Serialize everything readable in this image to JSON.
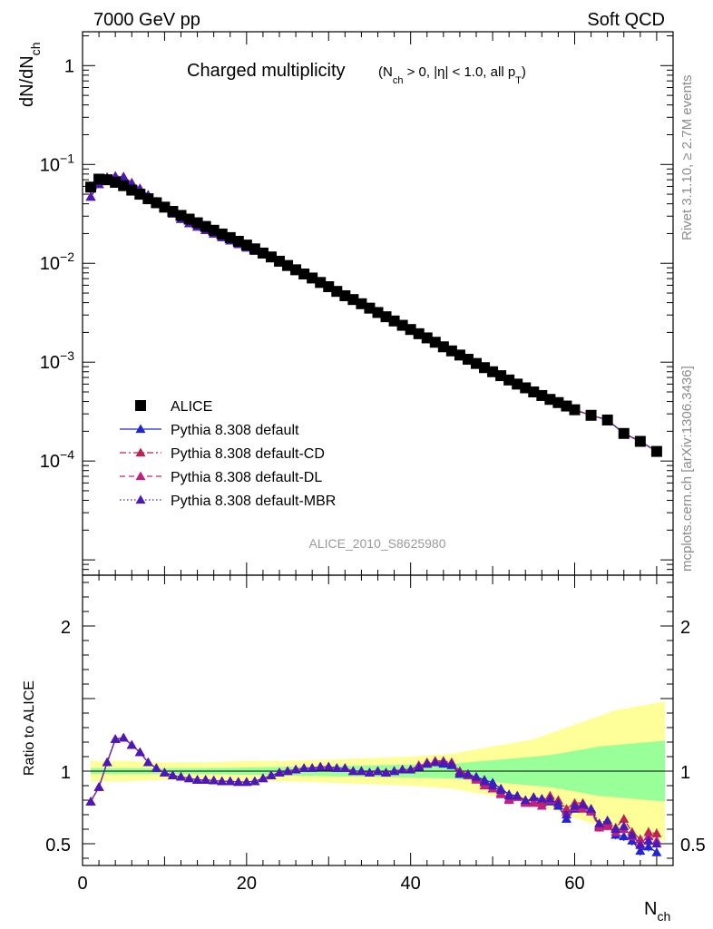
{
  "header": {
    "left_title": "7000 GeV pp",
    "right_title": "Soft QCD"
  },
  "side_labels": {
    "rivet": "Rivet 3.1.10, ≥ 2.7M events",
    "mcplots": "mcplots.cern.ch [arXiv:1306.3436]"
  },
  "chart_data": [
    {
      "type": "scatter",
      "panel": "main",
      "title": "Charged multiplicity",
      "subtitle_parts": [
        "(N",
        "ch",
        " > 0, |η| < 1.0, all p",
        "T",
        ")"
      ],
      "ylabel_parts": [
        "dN/dN",
        "ch"
      ],
      "xlabel_parts": [
        "N",
        "ch"
      ],
      "analysis_id": "ALICE_2010_S8625980",
      "yscale": "log",
      "xlim": [
        0,
        72
      ],
      "ylim": [
        7e-06,
        2.2
      ],
      "y_ticks": [
        {
          "value": 1,
          "label": "1"
        },
        {
          "value": 0.1,
          "label": "10",
          "exp": "−1"
        },
        {
          "value": 0.01,
          "label": "10",
          "exp": "−2"
        },
        {
          "value": 0.001,
          "label": "10",
          "exp": "−3"
        },
        {
          "value": 0.0001,
          "label": "10",
          "exp": "−4"
        }
      ],
      "legend_position": "lower-left",
      "x": [
        1,
        2,
        3,
        4,
        5,
        6,
        7,
        8,
        9,
        10,
        11,
        12,
        13,
        14,
        15,
        16,
        17,
        18,
        19,
        20,
        21,
        22,
        23,
        24,
        25,
        26,
        27,
        28,
        29,
        30,
        31,
        32,
        33,
        34,
        35,
        36,
        37,
        38,
        39,
        40,
        41,
        42,
        43,
        44,
        45,
        46,
        47,
        48,
        49,
        50,
        51,
        52,
        53,
        54,
        55,
        56,
        57,
        58,
        59,
        60,
        62,
        64,
        66,
        68,
        70
      ],
      "series": [
        {
          "name": "ALICE",
          "color": "#000000",
          "marker": "square",
          "values": [
            0.059,
            0.071,
            0.07,
            0.066,
            0.061,
            0.055,
            0.05,
            0.045,
            0.041,
            0.037,
            0.0335,
            0.0305,
            0.028,
            0.0257,
            0.0236,
            0.0216,
            0.0198,
            0.0182,
            0.0167,
            0.0153,
            0.014,
            0.0127,
            0.0116,
            0.0105,
            0.0095,
            0.0086,
            0.0078,
            0.0071,
            0.0064,
            0.0058,
            0.0052,
            0.0047,
            0.0043,
            0.0039,
            0.00352,
            0.00318,
            0.00288,
            0.00261,
            0.00236,
            0.00214,
            0.00194,
            0.00176,
            0.00159,
            0.00143,
            0.0013,
            0.00118,
            0.00107,
            0.00097,
            0.00088,
            0.0008,
            0.00073,
            0.00066,
            0.0006,
            0.00055,
            0.0005,
            0.00046,
            0.00042,
            0.00039,
            0.00036,
            0.00033,
            0.00029,
            0.00026,
            0.00019,
            0.000158,
            0.000125
          ]
        },
        {
          "name": "Pythia 8.308 default",
          "color": "#1f24d6",
          "marker": "triangle",
          "line": "solid",
          "values": [
            0.047,
            0.063,
            0.074,
            0.076,
            0.075,
            0.065,
            0.057,
            0.049,
            0.042,
            0.036,
            0.0317,
            0.028,
            0.0253,
            0.0234,
            0.0216,
            0.0199,
            0.0183,
            0.0169,
            0.0156,
            0.0144,
            0.0133,
            0.0123,
            0.0114,
            0.0104,
            0.0094,
            0.0086,
            0.0078,
            0.0071,
            0.0064,
            0.0058,
            0.0052,
            0.0047,
            0.0043,
            0.0039,
            0.00352,
            0.00318,
            0.00288,
            0.00261,
            0.00236,
            0.00214,
            0.00194,
            0.00176,
            0.00159,
            0.00143,
            0.0013,
            0.00118,
            0.00107,
            0.00097,
            0.00088,
            0.0008,
            0.00073,
            0.00066,
            0.0006,
            0.00055,
            0.0005,
            0.00046,
            0.00042,
            0.00039,
            0.00036,
            0.00033,
            0.00029,
            0.00026,
            0.00019,
            0.000158,
            0.000125
          ]
        },
        {
          "name": "Pythia 8.308 default-CD",
          "color": "#c0204e",
          "marker": "triangle",
          "line": "dashdot",
          "values": [
            0.047,
            0.063,
            0.074,
            0.076,
            0.075,
            0.065,
            0.057,
            0.049,
            0.042,
            0.036,
            0.0317,
            0.028,
            0.0253,
            0.0234,
            0.0216,
            0.0199,
            0.0183,
            0.0169,
            0.0156,
            0.0144,
            0.0133,
            0.0123,
            0.0114,
            0.0104,
            0.0094,
            0.0086,
            0.0078,
            0.0071,
            0.0064,
            0.0058,
            0.0052,
            0.0047,
            0.0043,
            0.0039,
            0.00352,
            0.00318,
            0.00288,
            0.00261,
            0.00236,
            0.00214,
            0.00194,
            0.00176,
            0.00159,
            0.00143,
            0.0013,
            0.00118,
            0.00107,
            0.00097,
            0.00088,
            0.0008,
            0.00073,
            0.00066,
            0.0006,
            0.00055,
            0.0005,
            0.00046,
            0.00042,
            0.00039,
            0.00036,
            0.00033,
            0.00029,
            0.00026,
            0.00019,
            0.000158,
            0.000125
          ]
        },
        {
          "name": "Pythia 8.308 default-DL",
          "color": "#c02080",
          "marker": "triangle",
          "line": "dashed",
          "values": [
            0.047,
            0.063,
            0.074,
            0.076,
            0.075,
            0.065,
            0.057,
            0.049,
            0.042,
            0.036,
            0.0317,
            0.028,
            0.0253,
            0.0234,
            0.0216,
            0.0199,
            0.0183,
            0.0169,
            0.0156,
            0.0144,
            0.0133,
            0.0123,
            0.0114,
            0.0104,
            0.0094,
            0.0086,
            0.0078,
            0.0071,
            0.0064,
            0.0058,
            0.0052,
            0.0047,
            0.0043,
            0.0039,
            0.00352,
            0.00318,
            0.00288,
            0.00261,
            0.00236,
            0.00214,
            0.00194,
            0.00176,
            0.00159,
            0.00143,
            0.0013,
            0.00118,
            0.00107,
            0.00097,
            0.00088,
            0.0008,
            0.00073,
            0.00066,
            0.0006,
            0.00055,
            0.0005,
            0.00046,
            0.00042,
            0.00039,
            0.00036,
            0.00033,
            0.00029,
            0.00026,
            0.00019,
            0.000158,
            0.000125
          ]
        },
        {
          "name": "Pythia 8.308 default-MBR",
          "color": "#4a1ab8",
          "marker": "triangle",
          "line": "dotted",
          "values": [
            0.047,
            0.063,
            0.074,
            0.076,
            0.075,
            0.065,
            0.057,
            0.049,
            0.042,
            0.036,
            0.0317,
            0.028,
            0.0253,
            0.0234,
            0.0216,
            0.0199,
            0.0183,
            0.0169,
            0.0156,
            0.0144,
            0.0133,
            0.0123,
            0.0114,
            0.0104,
            0.0094,
            0.0086,
            0.0078,
            0.0071,
            0.0064,
            0.0058,
            0.0052,
            0.0047,
            0.0043,
            0.0039,
            0.00352,
            0.00318,
            0.00288,
            0.00261,
            0.00236,
            0.00214,
            0.00194,
            0.00176,
            0.00159,
            0.00143,
            0.0013,
            0.00118,
            0.00107,
            0.00097,
            0.00088,
            0.0008,
            0.00073,
            0.00066,
            0.0006,
            0.00055,
            0.0005,
            0.00046,
            0.00042,
            0.00039,
            0.00036,
            0.00033,
            0.00029,
            0.00026,
            0.00019,
            0.000158,
            0.000125
          ]
        }
      ]
    },
    {
      "type": "line",
      "panel": "ratio",
      "ylabel": "Ratio to ALICE",
      "xlim": [
        0,
        72
      ],
      "ylim": [
        0.35,
        2.35
      ],
      "x_ticks": [
        0,
        20,
        40,
        60
      ],
      "y_ticks": [
        0.5,
        1,
        2
      ],
      "band_colors": {
        "outer": "#ffff99",
        "inner": "#99ff99"
      },
      "bands_x": [
        1,
        5,
        10,
        15,
        20,
        25,
        30,
        35,
        40,
        45,
        47,
        49,
        51,
        53,
        55,
        57,
        59,
        61,
        63,
        65,
        67,
        69,
        71
      ],
      "band_inner_halfwidth": [
        0.02,
        0.02,
        0.02,
        0.02,
        0.025,
        0.03,
        0.035,
        0.04,
        0.045,
        0.05,
        0.06,
        0.07,
        0.08,
        0.09,
        0.1,
        0.11,
        0.13,
        0.15,
        0.17,
        0.18,
        0.19,
        0.2,
        0.21
      ],
      "band_outer_halfwidth": [
        0.07,
        0.07,
        0.06,
        0.06,
        0.07,
        0.07,
        0.08,
        0.09,
        0.1,
        0.12,
        0.14,
        0.16,
        0.18,
        0.2,
        0.22,
        0.26,
        0.3,
        0.34,
        0.38,
        0.42,
        0.44,
        0.46,
        0.48
      ],
      "x": [
        1,
        2,
        3,
        4,
        5,
        6,
        7,
        8,
        9,
        10,
        11,
        12,
        13,
        14,
        15,
        16,
        17,
        18,
        19,
        20,
        21,
        22,
        23,
        24,
        25,
        26,
        27,
        28,
        29,
        30,
        31,
        32,
        33,
        34,
        35,
        36,
        37,
        38,
        39,
        40,
        41,
        42,
        43,
        44,
        45,
        46,
        47,
        48,
        49,
        50,
        51,
        52,
        53,
        54,
        55,
        56,
        57,
        58,
        59,
        60,
        61,
        62,
        63,
        64,
        65,
        66,
        67,
        68,
        69,
        70
      ],
      "series": [
        {
          "name": "Pythia 8.308 default",
          "color": "#1f24d6",
          "line": "solid",
          "values": [
            0.79,
            0.89,
            1.06,
            1.22,
            1.23,
            1.18,
            1.13,
            1.06,
            1.02,
            0.99,
            0.97,
            0.96,
            0.95,
            0.94,
            0.94,
            0.935,
            0.93,
            0.93,
            0.925,
            0.925,
            0.93,
            0.95,
            0.97,
            0.99,
            1.0,
            1.01,
            1.02,
            1.02,
            1.03,
            1.03,
            1.02,
            1.02,
            1.0,
            1.0,
            0.99,
            1.0,
            0.99,
            1.0,
            1.01,
            1.01,
            1.03,
            1.05,
            1.06,
            1.05,
            1.04,
            0.98,
            0.97,
            0.96,
            0.94,
            0.92,
            0.88,
            0.84,
            0.83,
            0.79,
            0.82,
            0.8,
            0.79,
            0.76,
            0.67,
            0.74,
            0.76,
            0.73,
            0.62,
            0.63,
            0.56,
            0.55,
            0.52,
            0.45,
            0.48,
            0.44
          ]
        },
        {
          "name": "Pythia 8.308 default-CD",
          "color": "#c0204e",
          "line": "dashdot",
          "values": [
            0.79,
            0.89,
            1.06,
            1.22,
            1.23,
            1.18,
            1.13,
            1.06,
            1.02,
            0.99,
            0.97,
            0.96,
            0.95,
            0.94,
            0.94,
            0.935,
            0.93,
            0.93,
            0.925,
            0.925,
            0.93,
            0.95,
            0.97,
            0.99,
            1.0,
            1.01,
            1.02,
            1.02,
            1.03,
            1.03,
            1.02,
            1.02,
            1.0,
            1.0,
            0.99,
            1.0,
            0.99,
            1.0,
            1.01,
            1.01,
            1.04,
            1.06,
            1.07,
            1.07,
            1.06,
            1.0,
            0.98,
            0.95,
            0.92,
            0.88,
            0.85,
            0.81,
            0.83,
            0.8,
            0.79,
            0.78,
            0.83,
            0.8,
            0.74,
            0.78,
            0.78,
            0.74,
            0.63,
            0.64,
            0.61,
            0.67,
            0.58,
            0.53,
            0.58,
            0.57
          ]
        },
        {
          "name": "Pythia 8.308 default-DL",
          "color": "#c02080",
          "line": "dashed",
          "values": [
            0.79,
            0.89,
            1.06,
            1.22,
            1.23,
            1.18,
            1.13,
            1.06,
            1.02,
            0.99,
            0.97,
            0.96,
            0.95,
            0.94,
            0.94,
            0.935,
            0.93,
            0.93,
            0.925,
            0.925,
            0.93,
            0.95,
            0.97,
            0.99,
            1.0,
            1.01,
            1.02,
            1.02,
            1.03,
            1.03,
            1.02,
            1.02,
            1.0,
            1.0,
            0.99,
            1.0,
            0.99,
            1.0,
            1.01,
            1.01,
            1.04,
            1.05,
            1.06,
            1.06,
            1.05,
            0.99,
            0.97,
            0.94,
            0.9,
            0.88,
            0.84,
            0.8,
            0.82,
            0.78,
            0.78,
            0.76,
            0.8,
            0.78,
            0.72,
            0.75,
            0.74,
            0.72,
            0.61,
            0.62,
            0.58,
            0.6,
            0.55,
            0.5,
            0.55,
            0.52
          ]
        },
        {
          "name": "Pythia 8.308 default-MBR",
          "color": "#4a1ab8",
          "line": "dotted",
          "values": [
            0.79,
            0.89,
            1.06,
            1.22,
            1.23,
            1.18,
            1.13,
            1.06,
            1.02,
            0.99,
            0.97,
            0.96,
            0.95,
            0.94,
            0.94,
            0.935,
            0.93,
            0.93,
            0.925,
            0.925,
            0.93,
            0.95,
            0.97,
            0.99,
            1.0,
            1.01,
            1.02,
            1.02,
            1.03,
            1.03,
            1.02,
            1.02,
            1.0,
            1.0,
            0.99,
            1.0,
            0.99,
            1.0,
            1.01,
            1.01,
            1.03,
            1.05,
            1.06,
            1.06,
            1.05,
            0.99,
            0.98,
            0.96,
            0.93,
            0.9,
            0.87,
            0.83,
            0.83,
            0.8,
            0.82,
            0.81,
            0.81,
            0.78,
            0.7,
            0.76,
            0.77,
            0.74,
            0.64,
            0.66,
            0.6,
            0.62,
            0.56,
            0.49,
            0.52,
            0.5
          ]
        }
      ]
    }
  ]
}
